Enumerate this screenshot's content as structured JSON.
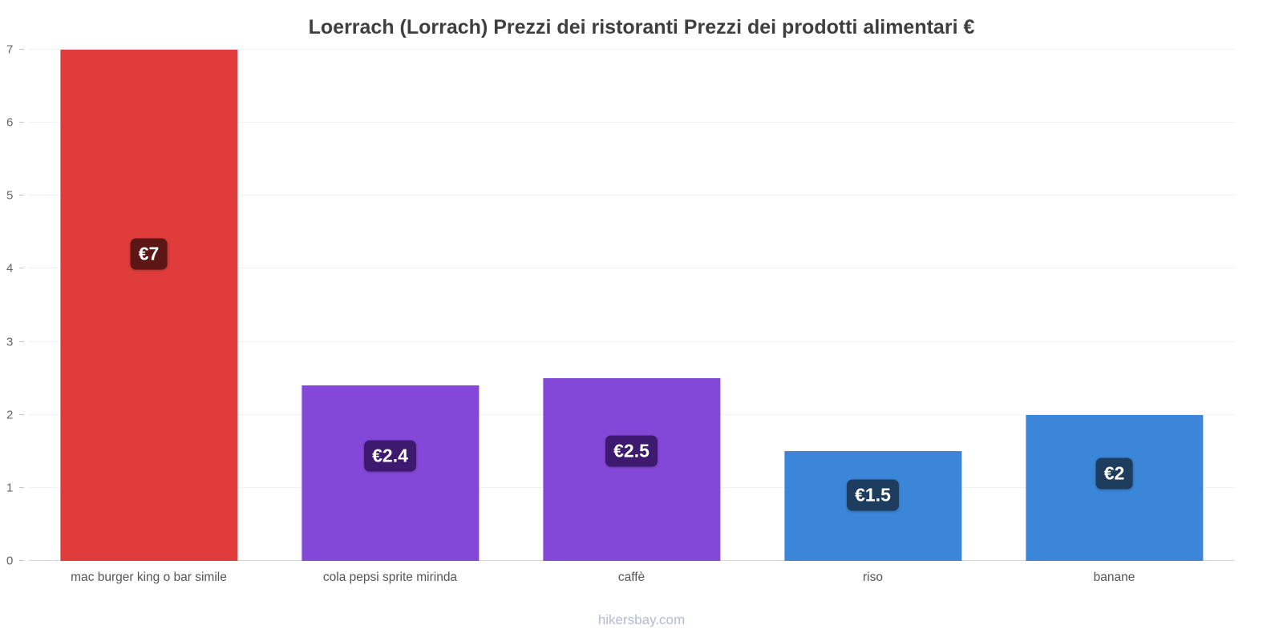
{
  "chart_data": {
    "type": "bar",
    "title": "Loerrach (Lorrach) Prezzi dei ristoranti Prezzi dei prodotti alimentari €",
    "categories": [
      "mac burger king o bar simile",
      "cola pepsi sprite mirinda",
      "caffè",
      "riso",
      "banane"
    ],
    "values": [
      7,
      2.4,
      2.5,
      1.5,
      2
    ],
    "value_labels": [
      "€7",
      "€2.4",
      "€2.5",
      "€1.5",
      "€2"
    ],
    "bar_colors": [
      "#e03c3c",
      "#8448d8",
      "#8448d8",
      "#3b86d8",
      "#3b86d8"
    ],
    "label_bg_colors": [
      "#5c1616",
      "#3d1a70",
      "#3d1a70",
      "#1d3c5e",
      "#1d3c5e"
    ],
    "xlabel": "",
    "ylabel": "",
    "ylim": [
      0,
      7
    ],
    "yticks": [
      0,
      1,
      2,
      3,
      4,
      5,
      6,
      7
    ],
    "grid": true,
    "legend": false
  },
  "footer": {
    "watermark": "hikersbay.com"
  }
}
